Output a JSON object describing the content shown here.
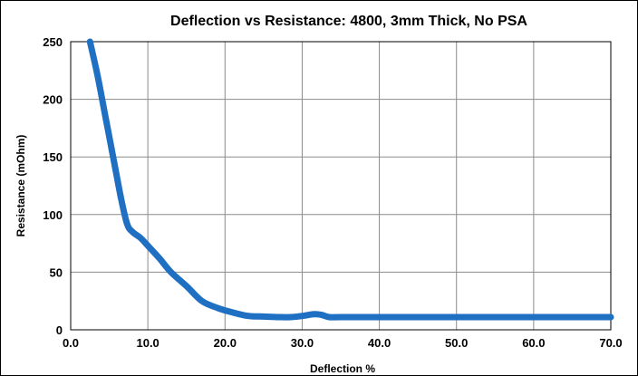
{
  "chart_data": {
    "type": "line",
    "title": "Deflection vs Resistance: 4800, 3mm Thick, No PSA",
    "xlabel": "Deflection %",
    "ylabel": "Resistance (mOhm)",
    "xlim": [
      0,
      70
    ],
    "ylim": [
      0,
      250
    ],
    "x_ticks": [
      0,
      10,
      20,
      30,
      40,
      50,
      60,
      70
    ],
    "x_tick_labels": [
      "0.0",
      "10.0",
      "20.0",
      "30.0",
      "40.0",
      "50.0",
      "60.0",
      "70.0"
    ],
    "y_ticks": [
      0,
      50,
      100,
      150,
      200,
      250
    ],
    "y_tick_labels": [
      "0",
      "50",
      "100",
      "150",
      "200",
      "250"
    ],
    "grid": true,
    "legend": "none",
    "series": [
      {
        "color": "#1f6fc2",
        "x": [
          2.5,
          3.5,
          4.5,
          5.5,
          6.5,
          7.3,
          8.0,
          9.0,
          10.0,
          11.5,
          13.0,
          15.0,
          17.0,
          19.0,
          21.0,
          23.0,
          25.0,
          27.0,
          28.5,
          30.0,
          31.5,
          32.5,
          33.5,
          35.0,
          40.0,
          50.0,
          60.0,
          70.0
        ],
        "y": [
          250,
          220,
          185,
          150,
          115,
          92,
          85,
          80,
          73,
          62,
          50,
          38,
          25,
          19,
          15,
          12,
          11.5,
          11,
          11,
          12,
          13.5,
          13,
          11,
          11,
          11,
          11,
          11,
          11
        ]
      }
    ]
  }
}
